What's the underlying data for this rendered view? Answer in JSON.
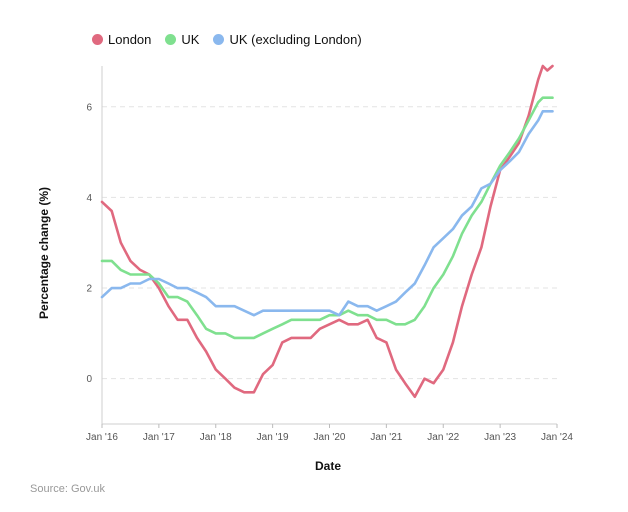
{
  "chart_data": {
    "type": "line",
    "xlabel": "Date",
    "ylabel": "Percentage change (%)",
    "source": "Source: Gov.uk",
    "x_ticks": [
      "Jan '16",
      "Jan '17",
      "Jan '18",
      "Jan '19",
      "Jan '20",
      "Jan '21",
      "Jan '22",
      "Jan '23",
      "Jan '24"
    ],
    "y_ticks": [
      0,
      2,
      4,
      6
    ],
    "ylim": [
      -1,
      6.9
    ],
    "grid": "horizontal dashed",
    "legend_position": "top-left",
    "series": [
      {
        "name": "London",
        "color": "#e0697f",
        "points": [
          [
            2016.0,
            3.9
          ],
          [
            2016.17,
            3.7
          ],
          [
            2016.33,
            3.0
          ],
          [
            2016.5,
            2.6
          ],
          [
            2016.67,
            2.4
          ],
          [
            2016.83,
            2.3
          ],
          [
            2017.0,
            2.0
          ],
          [
            2017.17,
            1.6
          ],
          [
            2017.33,
            1.3
          ],
          [
            2017.5,
            1.3
          ],
          [
            2017.67,
            0.9
          ],
          [
            2017.83,
            0.6
          ],
          [
            2018.0,
            0.2
          ],
          [
            2018.17,
            0.0
          ],
          [
            2018.33,
            -0.2
          ],
          [
            2018.5,
            -0.3
          ],
          [
            2018.67,
            -0.3
          ],
          [
            2018.83,
            0.1
          ],
          [
            2019.0,
            0.3
          ],
          [
            2019.17,
            0.8
          ],
          [
            2019.33,
            0.9
          ],
          [
            2019.5,
            0.9
          ],
          [
            2019.67,
            0.9
          ],
          [
            2019.83,
            1.1
          ],
          [
            2020.0,
            1.2
          ],
          [
            2020.17,
            1.3
          ],
          [
            2020.33,
            1.2
          ],
          [
            2020.5,
            1.2
          ],
          [
            2020.67,
            1.3
          ],
          [
            2020.83,
            0.9
          ],
          [
            2021.0,
            0.8
          ],
          [
            2021.17,
            0.2
          ],
          [
            2021.33,
            -0.1
          ],
          [
            2021.5,
            -0.4
          ],
          [
            2021.67,
            0.0
          ],
          [
            2021.83,
            -0.1
          ],
          [
            2022.0,
            0.2
          ],
          [
            2022.17,
            0.8
          ],
          [
            2022.33,
            1.6
          ],
          [
            2022.5,
            2.3
          ],
          [
            2022.67,
            2.9
          ],
          [
            2022.83,
            3.8
          ],
          [
            2023.0,
            4.6
          ],
          [
            2023.17,
            4.9
          ],
          [
            2023.33,
            5.2
          ],
          [
            2023.5,
            5.8
          ],
          [
            2023.67,
            6.6
          ],
          [
            2023.75,
            6.9
          ],
          [
            2023.83,
            6.8
          ],
          [
            2023.92,
            6.9
          ]
        ]
      },
      {
        "name": "UK",
        "color": "#7fe08f",
        "points": [
          [
            2016.0,
            2.6
          ],
          [
            2016.17,
            2.6
          ],
          [
            2016.33,
            2.4
          ],
          [
            2016.5,
            2.3
          ],
          [
            2016.67,
            2.3
          ],
          [
            2016.83,
            2.3
          ],
          [
            2017.0,
            2.1
          ],
          [
            2017.17,
            1.8
          ],
          [
            2017.33,
            1.8
          ],
          [
            2017.5,
            1.7
          ],
          [
            2017.67,
            1.4
          ],
          [
            2017.83,
            1.1
          ],
          [
            2018.0,
            1.0
          ],
          [
            2018.17,
            1.0
          ],
          [
            2018.33,
            0.9
          ],
          [
            2018.5,
            0.9
          ],
          [
            2018.67,
            0.9
          ],
          [
            2018.83,
            1.0
          ],
          [
            2019.0,
            1.1
          ],
          [
            2019.17,
            1.2
          ],
          [
            2019.33,
            1.3
          ],
          [
            2019.5,
            1.3
          ],
          [
            2019.67,
            1.3
          ],
          [
            2019.83,
            1.3
          ],
          [
            2020.0,
            1.4
          ],
          [
            2020.17,
            1.4
          ],
          [
            2020.33,
            1.5
          ],
          [
            2020.5,
            1.4
          ],
          [
            2020.67,
            1.4
          ],
          [
            2020.83,
            1.3
          ],
          [
            2021.0,
            1.3
          ],
          [
            2021.17,
            1.2
          ],
          [
            2021.33,
            1.2
          ],
          [
            2021.5,
            1.3
          ],
          [
            2021.67,
            1.6
          ],
          [
            2021.83,
            2.0
          ],
          [
            2022.0,
            2.3
          ],
          [
            2022.17,
            2.7
          ],
          [
            2022.33,
            3.2
          ],
          [
            2022.5,
            3.6
          ],
          [
            2022.67,
            3.9
          ],
          [
            2022.83,
            4.3
          ],
          [
            2023.0,
            4.7
          ],
          [
            2023.17,
            5.0
          ],
          [
            2023.33,
            5.3
          ],
          [
            2023.5,
            5.7
          ],
          [
            2023.67,
            6.1
          ],
          [
            2023.75,
            6.2
          ],
          [
            2023.83,
            6.2
          ],
          [
            2023.92,
            6.2
          ]
        ]
      },
      {
        "name": "UK (excluding London)",
        "color": "#8ab8ee",
        "points": [
          [
            2016.0,
            1.8
          ],
          [
            2016.17,
            2.0
          ],
          [
            2016.33,
            2.0
          ],
          [
            2016.5,
            2.1
          ],
          [
            2016.67,
            2.1
          ],
          [
            2016.83,
            2.2
          ],
          [
            2017.0,
            2.2
          ],
          [
            2017.17,
            2.1
          ],
          [
            2017.33,
            2.0
          ],
          [
            2017.5,
            2.0
          ],
          [
            2017.67,
            1.9
          ],
          [
            2017.83,
            1.8
          ],
          [
            2018.0,
            1.6
          ],
          [
            2018.17,
            1.6
          ],
          [
            2018.33,
            1.6
          ],
          [
            2018.5,
            1.5
          ],
          [
            2018.67,
            1.4
          ],
          [
            2018.83,
            1.5
          ],
          [
            2019.0,
            1.5
          ],
          [
            2019.17,
            1.5
          ],
          [
            2019.33,
            1.5
          ],
          [
            2019.5,
            1.5
          ],
          [
            2019.67,
            1.5
          ],
          [
            2019.83,
            1.5
          ],
          [
            2020.0,
            1.5
          ],
          [
            2020.17,
            1.4
          ],
          [
            2020.33,
            1.7
          ],
          [
            2020.5,
            1.6
          ],
          [
            2020.67,
            1.6
          ],
          [
            2020.83,
            1.5
          ],
          [
            2021.0,
            1.6
          ],
          [
            2021.17,
            1.7
          ],
          [
            2021.33,
            1.9
          ],
          [
            2021.5,
            2.1
          ],
          [
            2021.67,
            2.5
          ],
          [
            2021.83,
            2.9
          ],
          [
            2022.0,
            3.1
          ],
          [
            2022.17,
            3.3
          ],
          [
            2022.33,
            3.6
          ],
          [
            2022.5,
            3.8
          ],
          [
            2022.67,
            4.2
          ],
          [
            2022.83,
            4.3
          ],
          [
            2023.0,
            4.6
          ],
          [
            2023.17,
            4.8
          ],
          [
            2023.33,
            5.0
          ],
          [
            2023.5,
            5.4
          ],
          [
            2023.67,
            5.7
          ],
          [
            2023.75,
            5.9
          ],
          [
            2023.83,
            5.9
          ],
          [
            2023.92,
            5.9
          ]
        ]
      }
    ]
  }
}
